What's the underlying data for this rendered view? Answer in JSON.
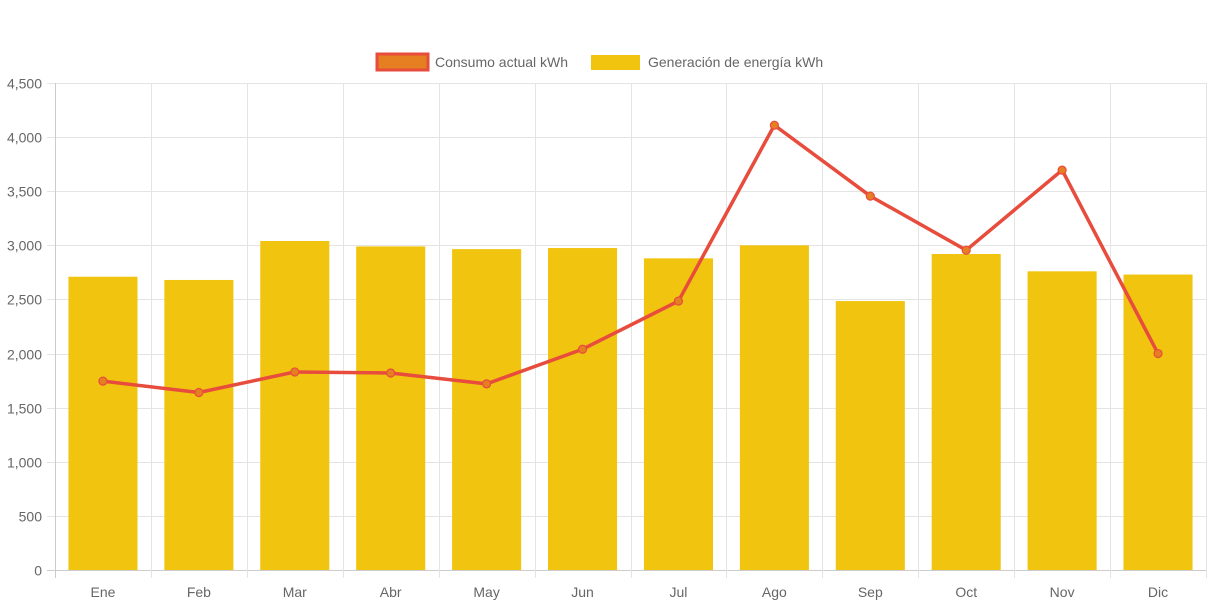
{
  "chart_data": {
    "type": "bar",
    "title": "",
    "xlabel": "",
    "ylabel": "",
    "categories": [
      "Ene",
      "Feb",
      "Mar",
      "Abr",
      "May",
      "Jun",
      "Jul",
      "Ago",
      "Sep",
      "Oct",
      "Nov",
      "Dic"
    ],
    "ylim": [
      0,
      4500
    ],
    "yticks": [
      0,
      500,
      1000,
      1500,
      2000,
      2500,
      3000,
      3500,
      4000,
      4500
    ],
    "ytick_labels": [
      "0",
      "500",
      "1,000",
      "1,500",
      "2,000",
      "2,500",
      "3,000",
      "3,500",
      "4,000",
      "4,500"
    ],
    "grid": true,
    "legend_position": "top-center",
    "series": [
      {
        "name": "Consumo actual kWh",
        "type": "line",
        "color": "#e74c3c",
        "point_color": "#e67e22",
        "values": [
          1745,
          1640,
          1830,
          1820,
          1720,
          2040,
          2485,
          4110,
          3455,
          2955,
          3695,
          2000
        ]
      },
      {
        "name": "Generación de energía kWh",
        "type": "bar",
        "color": "#f1c40f",
        "values": [
          2710,
          2680,
          3040,
          2990,
          2965,
          2975,
          2880,
          3000,
          2485,
          2920,
          2760,
          2730
        ]
      }
    ]
  },
  "legend": {
    "items": [
      {
        "label": "Consumo actual kWh",
        "fill": "#e67e22",
        "stroke": "#e74c3c"
      },
      {
        "label": "Generación de energía kWh",
        "fill": "#f1c40f",
        "stroke": "#f1c40f"
      }
    ]
  }
}
